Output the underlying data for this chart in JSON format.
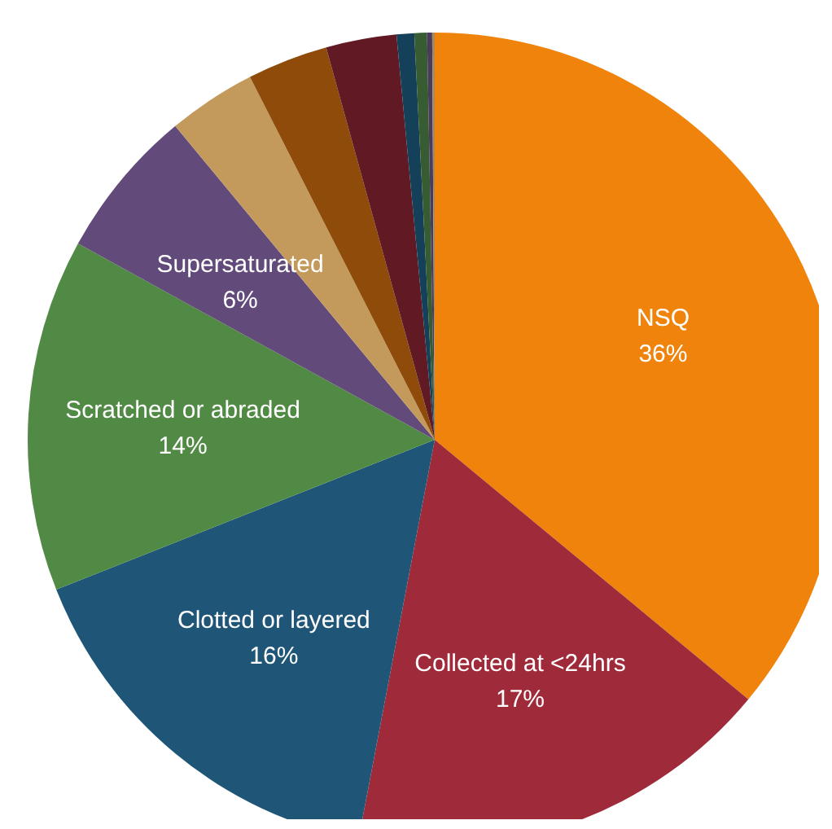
{
  "chart_data": {
    "type": "pie",
    "categories": [
      "NSQ",
      "Collected at <24hrs",
      "Clotted or layered",
      "Scratched or abraded",
      "Supersaturated",
      null,
      null,
      null,
      null,
      null,
      null,
      null
    ],
    "values": [
      36,
      17,
      16,
      14,
      6,
      3.5,
      3.2,
      2.8,
      0.7,
      0.5,
      0.2,
      0.1
    ],
    "colors": [
      "#ef830c",
      "#9e2a3a",
      "#1f5678",
      "#518a44",
      "#624a7a",
      "#c49a5c",
      "#8f4b0a",
      "#611a24",
      "#15405a",
      "#375c32",
      "#4a3a5c",
      "#a88a5a"
    ],
    "value_labels": [
      "36%",
      "17%",
      "16%",
      "14%",
      "6%",
      null,
      null,
      null,
      null,
      null,
      null,
      null
    ]
  }
}
